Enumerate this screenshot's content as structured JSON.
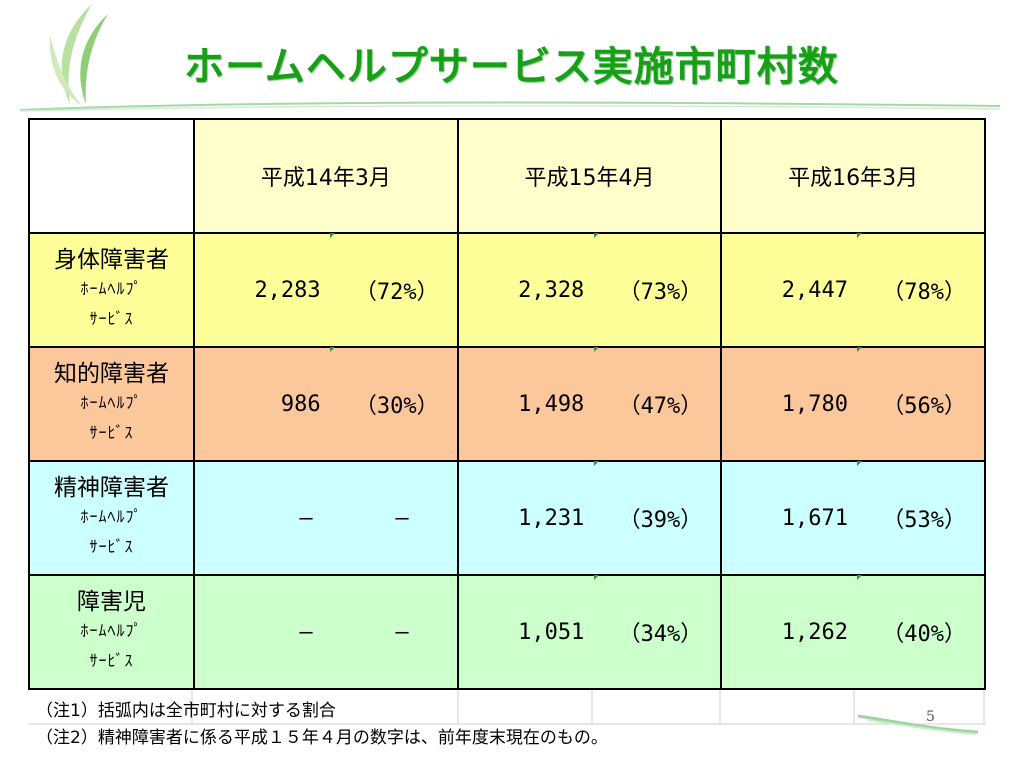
{
  "title": "ホームヘルプサービス実施市町村数",
  "colors": {
    "title": "#16a016",
    "accent_line": "#a6d8a6"
  },
  "table": {
    "headers": [
      "平成14年3月",
      "平成15年4月",
      "平成16年3月"
    ],
    "rows": [
      {
        "label": "身体障害者",
        "sublabel1": "ﾎｰﾑﾍﾙﾌﾟ",
        "sublabel2": "ｻｰﾋﾞｽ",
        "values": [
          {
            "num": "2,283",
            "pct": "（72%）"
          },
          {
            "num": "2,328",
            "pct": "（73%）"
          },
          {
            "num": "2,447",
            "pct": "（78%）"
          }
        ]
      },
      {
        "label": "知的障害者",
        "sublabel1": "ﾎｰﾑﾍﾙﾌﾟ",
        "sublabel2": "ｻｰﾋﾞｽ",
        "values": [
          {
            "num": "986",
            "pct": "（30%）"
          },
          {
            "num": "1,498",
            "pct": "（47%）"
          },
          {
            "num": "1,780",
            "pct": "（56%）"
          }
        ]
      },
      {
        "label": "精神障害者",
        "sublabel1": "ﾎｰﾑﾍﾙﾌﾟ",
        "sublabel2": "ｻｰﾋﾞｽ",
        "values": [
          {
            "num": "―",
            "pct": "―"
          },
          {
            "num": "1,231",
            "pct": "（39%）"
          },
          {
            "num": "1,671",
            "pct": "（53%）"
          }
        ]
      },
      {
        "label": "障害児",
        "sublabel1": "ﾎｰﾑﾍﾙﾌﾟ",
        "sublabel2": "ｻｰﾋﾞｽ",
        "values": [
          {
            "num": "―",
            "pct": "―"
          },
          {
            "num": "1,051",
            "pct": "（34%）"
          },
          {
            "num": "1,262",
            "pct": "（40%）"
          }
        ]
      }
    ]
  },
  "notes": [
    "（注1）括弧内は全市町村に対する割合",
    "（注2）精神障害者に係る平成１５年４月の数字は、前年度末現在のもの。"
  ],
  "page_number": "5"
}
